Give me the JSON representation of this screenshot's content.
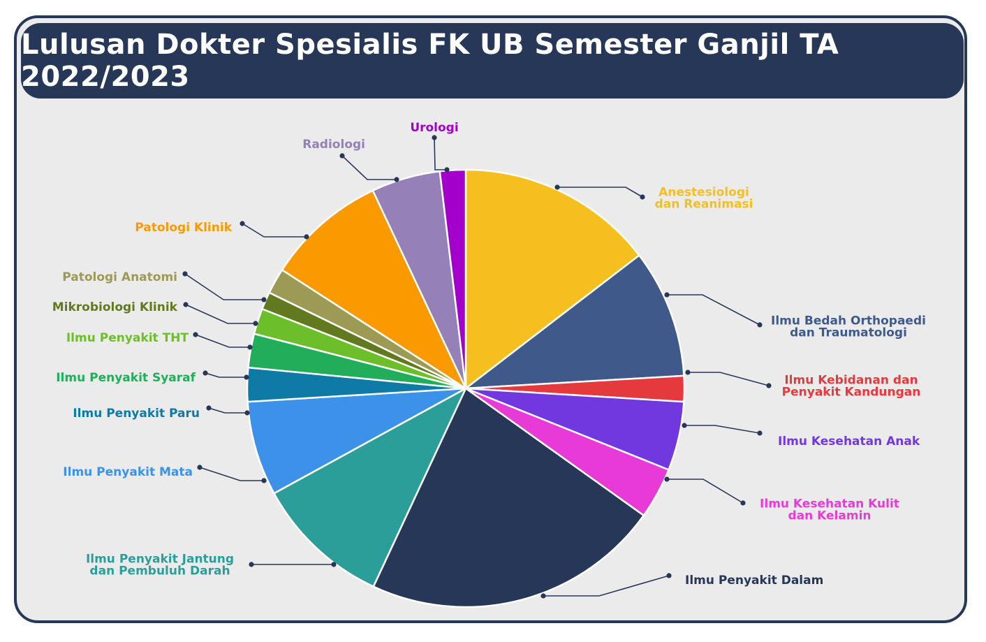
{
  "title": "Lulusan Dokter Spesialis FK UB Semester Ganjil TA 2022/2023",
  "chart_data": {
    "type": "pie",
    "title": "Lulusan Dokter Spesialis FK UB Semester Ganjil TA 2022/2023",
    "unit": "share of graduates (%), estimated from slice angles",
    "slices": [
      {
        "label": "Anestesiologi dan Reanimasi",
        "value": 14.6,
        "color": "#f4bf1f"
      },
      {
        "label": "Ilmu Bedah Orthopaedi dan Traumatologi",
        "value": 9.5,
        "color": "#3f5a8a"
      },
      {
        "label": "Ilmu Kebidanan dan Penyakit Kandungan",
        "value": 1.9,
        "color": "#e43a3d"
      },
      {
        "label": "Ilmu Kesehatan Anak",
        "value": 5.1,
        "color": "#7238e0"
      },
      {
        "label": "Ilmu Kesehatan Kulit dan Kelamin",
        "value": 3.8,
        "color": "#e73ad6"
      },
      {
        "label": "Ilmu Penyakit Dalam",
        "value": 22.1,
        "color": "#263757"
      },
      {
        "label": "Ilmu Penyakit Jantung dan Pembuluh Darah",
        "value": 10.1,
        "color": "#2c9e9a"
      },
      {
        "label": "Ilmu Penyakit Mata",
        "value": 7.0,
        "color": "#3b92e8"
      },
      {
        "label": "Ilmu Penyakit Paru",
        "value": 2.5,
        "color": "#0e7aa5"
      },
      {
        "label": "Ilmu Penyakit Syaraf",
        "value": 2.5,
        "color": "#21ad5a"
      },
      {
        "label": "Ilmu Penyakit THT",
        "value": 1.9,
        "color": "#6cbf2b"
      },
      {
        "label": "Mikrobiologi Klinik",
        "value": 1.3,
        "color": "#627a1f"
      },
      {
        "label": "Patologi Anatomi",
        "value": 1.9,
        "color": "#9c9a55"
      },
      {
        "label": "Patologi Klinik",
        "value": 8.9,
        "color": "#fb9a00"
      },
      {
        "label": "Radiologi",
        "value": 5.1,
        "color": "#9580b8"
      },
      {
        "label": "Urologi",
        "value": 1.9,
        "color": "#a300cc"
      }
    ]
  },
  "labels": [
    {
      "lines": [
        "Anestesiologi",
        "dan Reanimasi"
      ],
      "color": "#f4bf1f"
    },
    {
      "lines": [
        "Ilmu Bedah Orthopaedi",
        "dan Traumatologi"
      ],
      "color": "#3f5a8a"
    },
    {
      "lines": [
        "Ilmu Kebidanan dan",
        "Penyakit Kandungan"
      ],
      "color": "#e43a3d"
    },
    {
      "lines": [
        "Ilmu Kesehatan Anak"
      ],
      "color": "#7238e0"
    },
    {
      "lines": [
        "Ilmu Kesehatan Kulit",
        "dan Kelamin"
      ],
      "color": "#e73ad6"
    },
    {
      "lines": [
        "Ilmu Penyakit Dalam"
      ],
      "color": "#263757"
    },
    {
      "lines": [
        "Ilmu Penyakit Jantung",
        "dan Pembuluh Darah"
      ],
      "color": "#2c9e9a"
    },
    {
      "lines": [
        "Ilmu Penyakit Mata"
      ],
      "color": "#3b92e8"
    },
    {
      "lines": [
        "Ilmu Penyakit Paru"
      ],
      "color": "#0e7aa5"
    },
    {
      "lines": [
        "Ilmu Penyakit Syaraf"
      ],
      "color": "#21ad5a"
    },
    {
      "lines": [
        "Ilmu Penyakit THT"
      ],
      "color": "#6cbf2b"
    },
    {
      "lines": [
        "Mikrobiologi Klinik"
      ],
      "color": "#627a1f"
    },
    {
      "lines": [
        "Patologi Anatomi"
      ],
      "color": "#9c9a55"
    },
    {
      "lines": [
        "Patologi Klinik"
      ],
      "color": "#fb9a00"
    },
    {
      "lines": [
        "Radiologi"
      ],
      "color": "#9580b8"
    },
    {
      "lines": [
        "Urologi"
      ],
      "color": "#a300cc"
    }
  ],
  "leader_color": "#263757"
}
